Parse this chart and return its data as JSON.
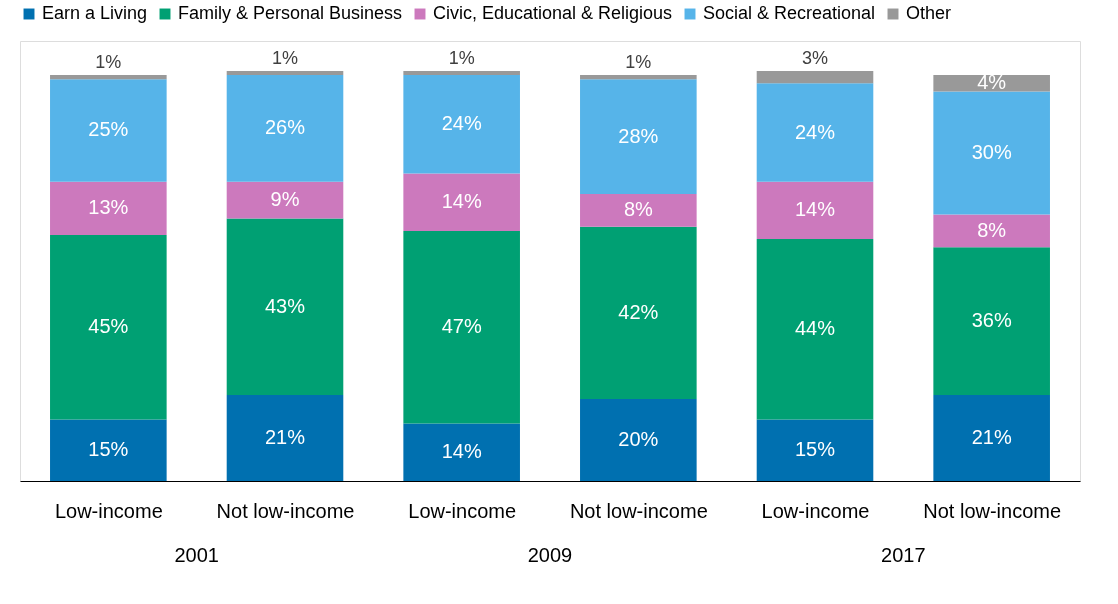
{
  "chart_data": {
    "type": "bar",
    "stacked": true,
    "categories": [
      "Low-income",
      "Not low-income",
      "Low-income",
      "Not low-income",
      "Low-income",
      "Not low-income"
    ],
    "annotations": [
      "2001",
      "2009",
      "2017"
    ],
    "series": [
      {
        "name": "Earn a Living",
        "color": "#0070b0",
        "values": [
          15,
          21,
          14,
          20,
          15,
          21
        ],
        "value_labels": [
          "15%",
          "21%",
          "14%",
          "20%",
          "15%",
          "21%"
        ]
      },
      {
        "name": "Family & Personal Business",
        "color": "#00a073",
        "values": [
          45,
          43,
          47,
          42,
          44,
          36
        ],
        "value_labels": [
          "45%",
          "43%",
          "47%",
          "42%",
          "44%",
          "36%"
        ]
      },
      {
        "name": "Civic, Educational & Religious",
        "color": "#cc79bd",
        "values": [
          13,
          9,
          14,
          8,
          14,
          8
        ],
        "value_labels": [
          "13%",
          "9%",
          "14%",
          "8%",
          "14%",
          "8%"
        ]
      },
      {
        "name": "Social & Recreational",
        "color": "#56b4e9",
        "values": [
          25,
          26,
          24,
          28,
          24,
          30
        ],
        "value_labels": [
          "25%",
          "26%",
          "24%",
          "28%",
          "24%",
          "30%"
        ]
      },
      {
        "name": "Other",
        "color": "#999999",
        "values": [
          1,
          1,
          1,
          1,
          3,
          4
        ],
        "value_labels": [
          "1%",
          "1%",
          "1%",
          "1%",
          "3%",
          "4%"
        ]
      }
    ],
    "legend": "top",
    "grid": false
  }
}
